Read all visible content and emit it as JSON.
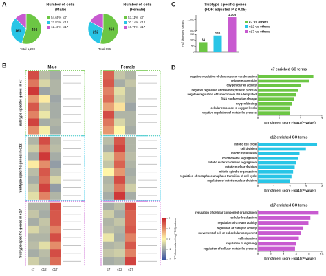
{
  "panel_labels": [
    "A",
    "B",
    "C",
    "D"
  ],
  "chart_data": [
    {
      "type": "pie",
      "title": "Number of cells",
      "subtitle": "(Male)",
      "categories": [
        "c7",
        "c12",
        "c17"
      ],
      "values": [
        54.65,
        32.87,
        12.48
      ],
      "value_labels": [
        "54.65%",
        "32.87%",
        "12.48%"
      ],
      "colors": [
        "#6cc644",
        "#29c5e6",
        "#c85ad0"
      ],
      "annotations": [
        "494",
        "161"
      ],
      "total": "Total 1,220"
    },
    {
      "type": "pie",
      "title": "Number of cells",
      "subtitle": "(Female)",
      "categories": [
        "c7",
        "c12",
        "c17"
      ],
      "values": [
        53.11,
        30.14,
        16.75
      ],
      "value_labels": [
        "53.11%",
        "30.14%",
        "16.75%"
      ],
      "colors": [
        "#6cc644",
        "#29c5e6",
        "#c85ad0"
      ],
      "annotations": [
        "464",
        "252"
      ],
      "total": "Total 896"
    },
    {
      "type": "heatmap",
      "groups": [
        "Male",
        "Female"
      ],
      "columns": [
        "c7",
        "c12",
        "c17",
        "c7",
        "c12",
        "c17"
      ],
      "row_groups": [
        "Subtype specific genes in c7",
        "Subtype specific genes in c12",
        "Subtype specific genes in c17"
      ],
      "row_group_colors": [
        "#6cc644",
        "#29c5e6",
        "#c85ad0"
      ],
      "values": [
        [
          [
            1.6,
            -0.7,
            -0.9,
            1.4,
            -0.6,
            -0.8
          ],
          [
            1.2,
            -0.4,
            -0.8,
            1.5,
            -0.9,
            -0.6
          ],
          [
            1.8,
            -1.0,
            -0.8,
            1.1,
            -0.3,
            -0.8
          ],
          [
            0.9,
            0.1,
            -1.0,
            1.3,
            -0.5,
            -0.8
          ],
          [
            1.5,
            -0.6,
            -0.9,
            0.8,
            0.2,
            -1.0
          ],
          [
            1.1,
            -0.2,
            -0.9,
            1.6,
            -0.8,
            -0.8
          ],
          [
            1.7,
            -0.9,
            -0.8,
            1.2,
            -0.4,
            -0.8
          ],
          [
            1.0,
            -0.1,
            -0.9,
            0.9,
            0.0,
            -0.9
          ]
        ],
        [
          [
            -0.8,
            1.6,
            -0.8,
            -0.7,
            1.5,
            -0.8
          ],
          [
            -0.5,
            1.2,
            -0.7,
            -0.9,
            1.7,
            -0.8
          ],
          [
            -0.9,
            1.8,
            -0.9,
            -0.4,
            1.1,
            -0.7
          ],
          [
            0.1,
            1.0,
            -1.1,
            -0.6,
            1.4,
            -0.8
          ],
          [
            -0.7,
            1.5,
            -0.8,
            0.0,
            0.9,
            -0.9
          ],
          [
            -0.9,
            1.3,
            -0.4,
            -0.8,
            1.6,
            -0.8
          ],
          [
            -0.6,
            1.7,
            -1.1,
            -0.7,
            1.2,
            -0.5
          ],
          [
            -0.3,
            1.1,
            -0.8,
            -0.9,
            1.8,
            -0.9
          ]
        ],
        [
          [
            -0.8,
            -0.8,
            1.6,
            -0.9,
            -0.7,
            1.6
          ],
          [
            -0.6,
            -0.9,
            1.5,
            -0.5,
            -0.9,
            1.4
          ],
          [
            -0.9,
            -0.6,
            1.5,
            -0.8,
            -0.6,
            1.4
          ],
          [
            -0.4,
            -0.7,
            1.1,
            -0.7,
            -0.8,
            1.5
          ],
          [
            -0.8,
            -0.8,
            1.6,
            -0.2,
            -0.9,
            1.1
          ],
          [
            -0.7,
            -0.3,
            1.0,
            -0.8,
            -0.7,
            1.5
          ],
          [
            -0.9,
            -0.7,
            1.6,
            -0.6,
            -0.5,
            1.1
          ],
          [
            -0.5,
            -0.8,
            1.3,
            -0.9,
            -0.8,
            1.7
          ]
        ]
      ],
      "colormap": [
        "#3a54a4",
        "#fff6a8",
        "#c8232c"
      ],
      "zlim": [
        -2,
        2
      ],
      "zticks": [
        2,
        1,
        0,
        -1,
        -2
      ],
      "colorbar_label": "TPM normalized log(TPM) values"
    },
    {
      "type": "bar",
      "title": "Subtype specific genes",
      "subtitle": "(FDR adjusted P ≤ 0.05)",
      "categories": [
        "c7 vs others",
        "c12 vs others",
        "c17 vs others"
      ],
      "values": [
        84,
        140,
        1108
      ],
      "value_labels": [
        "84",
        "140",
        "1,108"
      ],
      "colors": [
        "#6cc644",
        "#29c5e6",
        "#c85ad0"
      ],
      "ylabel": "# of detected genes",
      "ylim": [
        0,
        1200
      ],
      "ybreak": [
        150,
        500
      ],
      "yticks": [
        0,
        50,
        100,
        150,
        500,
        {
          "value": 1000,
          "label": "1,000"
        }
      ]
    },
    {
      "type": "hbar",
      "title": "c7 enriched GO terms",
      "categories": [
        "negative regulation of chromosome condensation",
        "telomere assembly",
        "oxygen carrier activity",
        "negative regulation of RNA biosynthetic process",
        "negative regulation of transcription, DNA-templated",
        "DNA conformation change",
        "oxygen binding",
        "cellular response to oxygen levels",
        "negative regulation of metabolic process"
      ],
      "values": [
        2.6,
        2.4,
        2.0,
        1.9,
        1.8,
        1.7,
        1.6,
        1.5,
        1.5
      ],
      "color": "#6cc644",
      "xlabel": "Enrichment score (-log10(P-value))",
      "xlim": [
        0,
        3
      ],
      "xticks": [
        0,
        1,
        2,
        3
      ]
    },
    {
      "type": "hbar",
      "title": "c12 enriched GO terms",
      "categories": [
        "mitotic cell cycle",
        "cell division",
        "mitotic cytokinesis",
        "chromosome segregation",
        "mitotic sister chromatid segregation",
        "mitotic nuclear division",
        "mitotic spindle organization",
        "regulation of metaphase/anaphase transition of cell cycle",
        "regulation of mitotic nuclear division"
      ],
      "values": [
        3.7,
        3.0,
        2.6,
        2.5,
        2.4,
        2.3,
        2.2,
        2.1,
        2.0
      ],
      "color": "#29c5e6",
      "xlabel": "Enrichment score (-log10(P-value))",
      "xlim": [
        0,
        4
      ],
      "xticks": [
        0,
        1,
        2,
        3,
        4
      ]
    },
    {
      "type": "hbar",
      "title": "c17 enriched GO terms",
      "categories": [
        "regulation of cellular component organization",
        "cellular localization",
        "regulation of GTPase activity",
        "regulation of catalytic activity",
        "movement of cell or subcellular component",
        "cell migration",
        "regulation of signaling",
        "regulation of cellular metabolic process"
      ],
      "values": [
        9.5,
        8.2,
        7.9,
        7.1,
        6.7,
        6.4,
        6.0,
        5.8
      ],
      "color": "#c85ad0",
      "xlabel": "Enrichment score (-log10(P-value))",
      "xlim": [
        0,
        10
      ],
      "xticks": [
        0,
        2,
        4,
        6,
        8,
        10
      ]
    }
  ]
}
